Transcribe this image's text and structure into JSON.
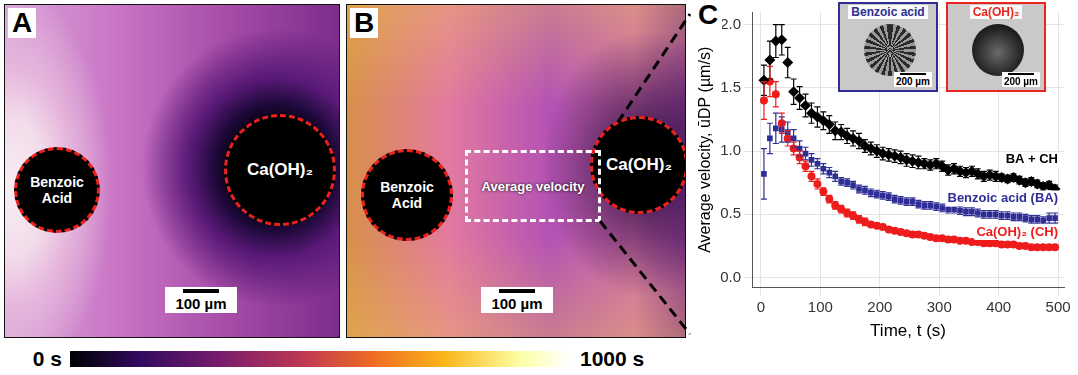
{
  "panels": [
    {
      "label": "A",
      "markers": [
        "Benzoic Acid",
        "Ca(OH)₂"
      ],
      "scale_bar": "100 µm"
    },
    {
      "label": "B",
      "markers": [
        "Benzoic Acid",
        "Ca(OH)₂"
      ],
      "scale_bar": "100 µm",
      "region": "Average velocity"
    }
  ],
  "colorbar": {
    "range": [
      0,
      1000
    ],
    "ticks": [
      {
        "value": 0,
        "label": "0 s"
      },
      {
        "value": 1000,
        "label": "1000 s"
      }
    ]
  },
  "chart_data": {
    "type": "scatter",
    "panel_label": "C",
    "x_label": "Time, t (s)",
    "y_label": "Average velocity, ūDP (µm/s)",
    "xlim": [
      -15,
      510
    ],
    "xticks": [
      0,
      100,
      200,
      300,
      400,
      500
    ],
    "ylim": [
      -0.08,
      2.1
    ],
    "yticks": [
      {
        "value": 0,
        "label": "0.0"
      },
      0.5,
      {
        "value": 1,
        "label": "1.0"
      },
      1.5,
      {
        "value": 2,
        "label": "2.0"
      }
    ],
    "grid": true,
    "x": [
      5,
      15,
      25,
      35,
      45,
      55,
      65,
      75,
      85,
      95,
      105,
      115,
      125,
      135,
      145,
      155,
      165,
      175,
      185,
      195,
      205,
      215,
      225,
      235,
      245,
      255,
      265,
      275,
      285,
      295,
      305,
      315,
      325,
      335,
      345,
      355,
      365,
      375,
      385,
      395,
      405,
      415,
      425,
      435,
      445,
      455,
      465,
      475,
      485,
      495
    ],
    "series": [
      {
        "name": "BA + CH",
        "color": "#000000",
        "marker": "diamond",
        "values": [
          1.56,
          1.72,
          1.87,
          1.88,
          1.7,
          1.47,
          1.42,
          1.36,
          1.3,
          1.27,
          1.24,
          1.21,
          1.16,
          1.15,
          1.12,
          1.1,
          1.08,
          1.04,
          1.02,
          1.0,
          0.98,
          0.97,
          0.96,
          0.95,
          0.93,
          0.92,
          0.91,
          0.9,
          0.89,
          0.9,
          0.88,
          0.85,
          0.86,
          0.84,
          0.83,
          0.84,
          0.82,
          0.8,
          0.81,
          0.8,
          0.79,
          0.78,
          0.79,
          0.77,
          0.75,
          0.76,
          0.74,
          0.72,
          0.73,
          0.7
        ],
        "errors": [
          0.12,
          0.15,
          0.13,
          0.12,
          0.12,
          0.1,
          0.09,
          0.09,
          0.08,
          0.08,
          0.07,
          0.07,
          0.07,
          0.06,
          0.06,
          0.06,
          0.06,
          0.05,
          0.05,
          0.05,
          0.05,
          0.05,
          0.05,
          0.05,
          0.05,
          0.05,
          0.05,
          0.04,
          0.04,
          0.04,
          0.04,
          0.04,
          0.04,
          0.04,
          0.04,
          0.04,
          0.04,
          0.04,
          0.04,
          0.04,
          0.03,
          0.03,
          0.03,
          0.03,
          0.03,
          0.03,
          0.03,
          0.03,
          0.03,
          0.03
        ]
      },
      {
        "name": "Benzoic acid (BA)",
        "color": "#2e2e96",
        "marker": "square",
        "values": [
          0.82,
          1.1,
          1.18,
          1.17,
          1.15,
          1.1,
          1.02,
          0.98,
          0.93,
          0.9,
          0.86,
          0.83,
          0.8,
          0.76,
          0.75,
          0.73,
          0.7,
          0.69,
          0.67,
          0.66,
          0.65,
          0.64,
          0.62,
          0.61,
          0.6,
          0.6,
          0.58,
          0.57,
          0.57,
          0.56,
          0.55,
          0.54,
          0.54,
          0.53,
          0.52,
          0.52,
          0.51,
          0.5,
          0.5,
          0.5,
          0.49,
          0.49,
          0.48,
          0.48,
          0.47,
          0.46,
          0.46,
          0.45,
          0.47,
          0.47
        ],
        "errors": [
          0.2,
          0.12,
          0.12,
          0.1,
          0.08,
          0.07,
          0.06,
          0.05,
          0.05,
          0.04,
          0.04,
          0.04,
          0.04,
          0.03,
          0.03,
          0.03,
          0.03,
          0.03,
          0.03,
          0.03,
          0.03,
          0.03,
          0.03,
          0.03,
          0.03,
          0.03,
          0.03,
          0.03,
          0.03,
          0.03,
          0.03,
          0.03,
          0.03,
          0.03,
          0.03,
          0.03,
          0.03,
          0.03,
          0.03,
          0.03,
          0.03,
          0.03,
          0.03,
          0.03,
          0.03,
          0.03,
          0.03,
          0.03,
          0.04,
          0.04
        ]
      },
      {
        "name": "Ca(OH)₂ (CH)",
        "color": "#ee1c1c",
        "marker": "circle",
        "values": [
          1.4,
          1.55,
          1.45,
          1.22,
          1.1,
          1.02,
          0.95,
          0.88,
          0.8,
          0.74,
          0.68,
          0.62,
          0.57,
          0.54,
          0.51,
          0.49,
          0.46,
          0.44,
          0.42,
          0.41,
          0.4,
          0.38,
          0.37,
          0.36,
          0.35,
          0.34,
          0.34,
          0.33,
          0.32,
          0.31,
          0.31,
          0.3,
          0.3,
          0.29,
          0.29,
          0.28,
          0.28,
          0.27,
          0.27,
          0.27,
          0.26,
          0.26,
          0.26,
          0.25,
          0.25,
          0.24,
          0.24,
          0.24,
          0.24,
          0.24
        ],
        "errors": [
          0.15,
          0.12,
          0.1,
          0.08,
          0.06,
          0.05,
          0.05,
          0.04,
          0.04,
          0.04,
          0.03,
          0.03,
          0.03,
          0.03,
          0.03,
          0.03,
          0.03,
          0.03,
          0.02,
          0.02,
          0.02,
          0.02,
          0.02,
          0.02,
          0.02,
          0.02,
          0.02,
          0.02,
          0.02,
          0.02,
          0.02,
          0.02,
          0.02,
          0.02,
          0.02,
          0.02,
          0.02,
          0.02,
          0.02,
          0.02,
          0.02,
          0.02,
          0.02,
          0.02,
          0.02,
          0.02,
          0.02,
          0.02,
          0.02,
          0.02
        ]
      }
    ],
    "insets": [
      {
        "title": "Benzoic acid",
        "color": "#2e2e96",
        "scale_bar": "200 µm"
      },
      {
        "title": "Ca(OH)₂",
        "color": "#e8251e",
        "scale_bar": "200 µm"
      }
    ]
  }
}
